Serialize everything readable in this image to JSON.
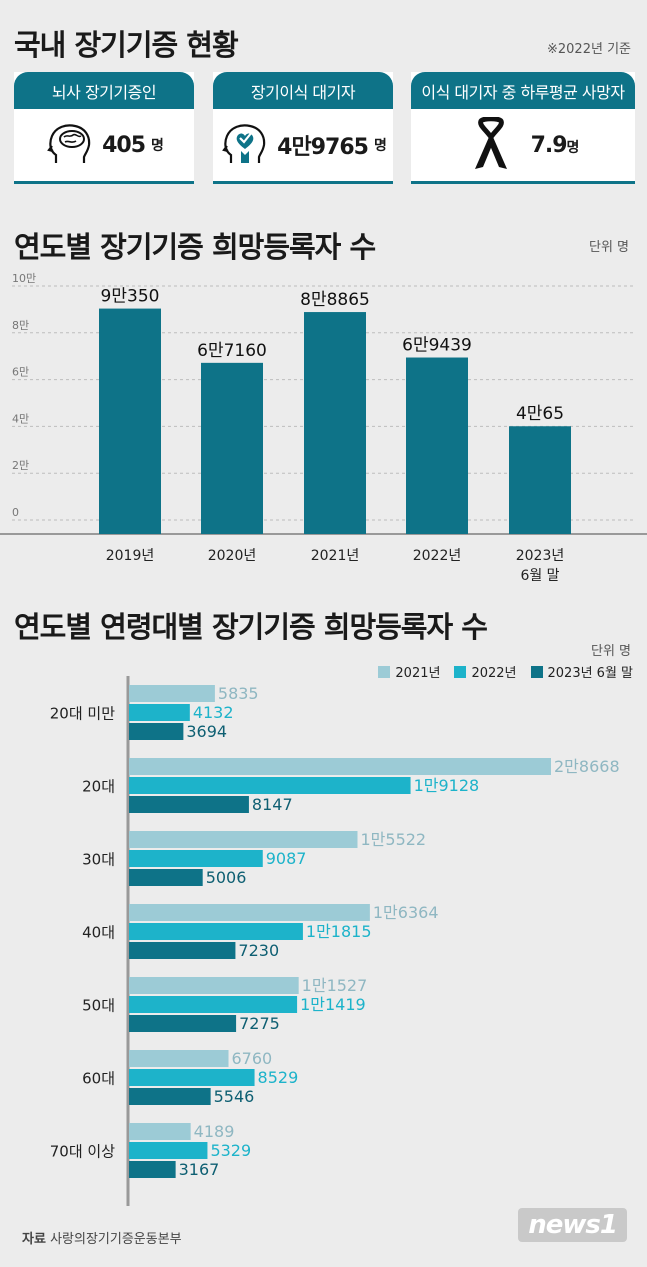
{
  "header": {
    "title": "국내 장기기증 현황",
    "basis": "※2022년 기준"
  },
  "cards": [
    {
      "label": "뇌사 장기기증인",
      "number": "405",
      "unit": "명",
      "icon": "brain-icon"
    },
    {
      "label": "장기이식 대기자",
      "number": "4만9765",
      "unit": "명",
      "icon": "heart-hand-icon"
    },
    {
      "label": "이식 대기자 중 하루평균 사망자",
      "number": "7.9",
      "unit": "명",
      "icon": "mourning-ribbon-icon"
    }
  ],
  "colors": {
    "accent": "#0e7388",
    "s2021": "#9ccbd6",
    "s2022": "#1db3ca",
    "s2023": "#0e7388"
  },
  "chart_data": [
    {
      "type": "bar",
      "title": "연도별 장기기증 희망등록자 수",
      "unit": "단위 명",
      "categories": [
        "2019년",
        "2020년",
        "2021년",
        "2022년",
        "2023년\n6월 말"
      ],
      "values": [
        90350,
        67160,
        88865,
        69439,
        40065
      ],
      "value_labels": [
        "9만350",
        "6만7160",
        "8만8865",
        "6만9439",
        "4만65"
      ],
      "yticks": [
        0,
        20000,
        40000,
        60000,
        80000,
        100000
      ],
      "ytick_labels": [
        "0",
        "2만",
        "4만",
        "6만",
        "8만",
        "10만"
      ],
      "ylim": [
        0,
        100000
      ]
    },
    {
      "type": "bar",
      "orientation": "horizontal",
      "title": "연도별 연령대별 장기기증 희망등록자 수",
      "unit": "단위 명",
      "categories": [
        "20대 미만",
        "20대",
        "30대",
        "40대",
        "50대",
        "60대",
        "70대 이상"
      ],
      "series": [
        {
          "name": "2021년",
          "values": [
            5835,
            28668,
            15522,
            16364,
            11527,
            6760,
            4189
          ],
          "labels": [
            "5835",
            "2만8668",
            "1만5522",
            "1만6364",
            "1만1527",
            "6760",
            "4189"
          ]
        },
        {
          "name": "2022년",
          "values": [
            4132,
            19128,
            9087,
            11815,
            11419,
            8529,
            5329
          ],
          "labels": [
            "4132",
            "1만9128",
            "9087",
            "1만1815",
            "1만1419",
            "8529",
            "5329"
          ]
        },
        {
          "name": "2023년 6월 말",
          "values": [
            3694,
            8147,
            5006,
            7230,
            7275,
            5546,
            3167
          ],
          "labels": [
            "3694",
            "8147",
            "5006",
            "7230",
            "7275",
            "5546",
            "3167"
          ]
        }
      ],
      "xlim": [
        0,
        30000
      ]
    }
  ],
  "footer": {
    "source_label": "자료",
    "source": "사랑의장기기증운동본부",
    "logo": "news1"
  }
}
